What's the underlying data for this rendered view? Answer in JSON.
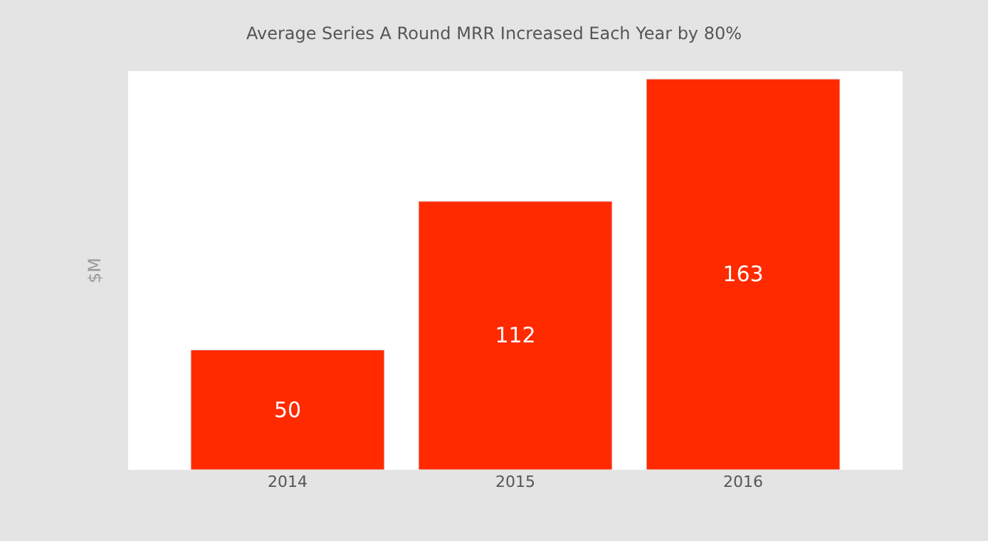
{
  "chart_data": {
    "type": "bar",
    "title": "Average Series A Round MRR Increased Each Year by 80%",
    "ylabel": "$M",
    "categories": [
      "2014",
      "2015",
      "2016"
    ],
    "values": [
      50,
      112,
      163
    ],
    "color": "#ff2a00",
    "data_labels": true,
    "tick_labels": "x"
  }
}
